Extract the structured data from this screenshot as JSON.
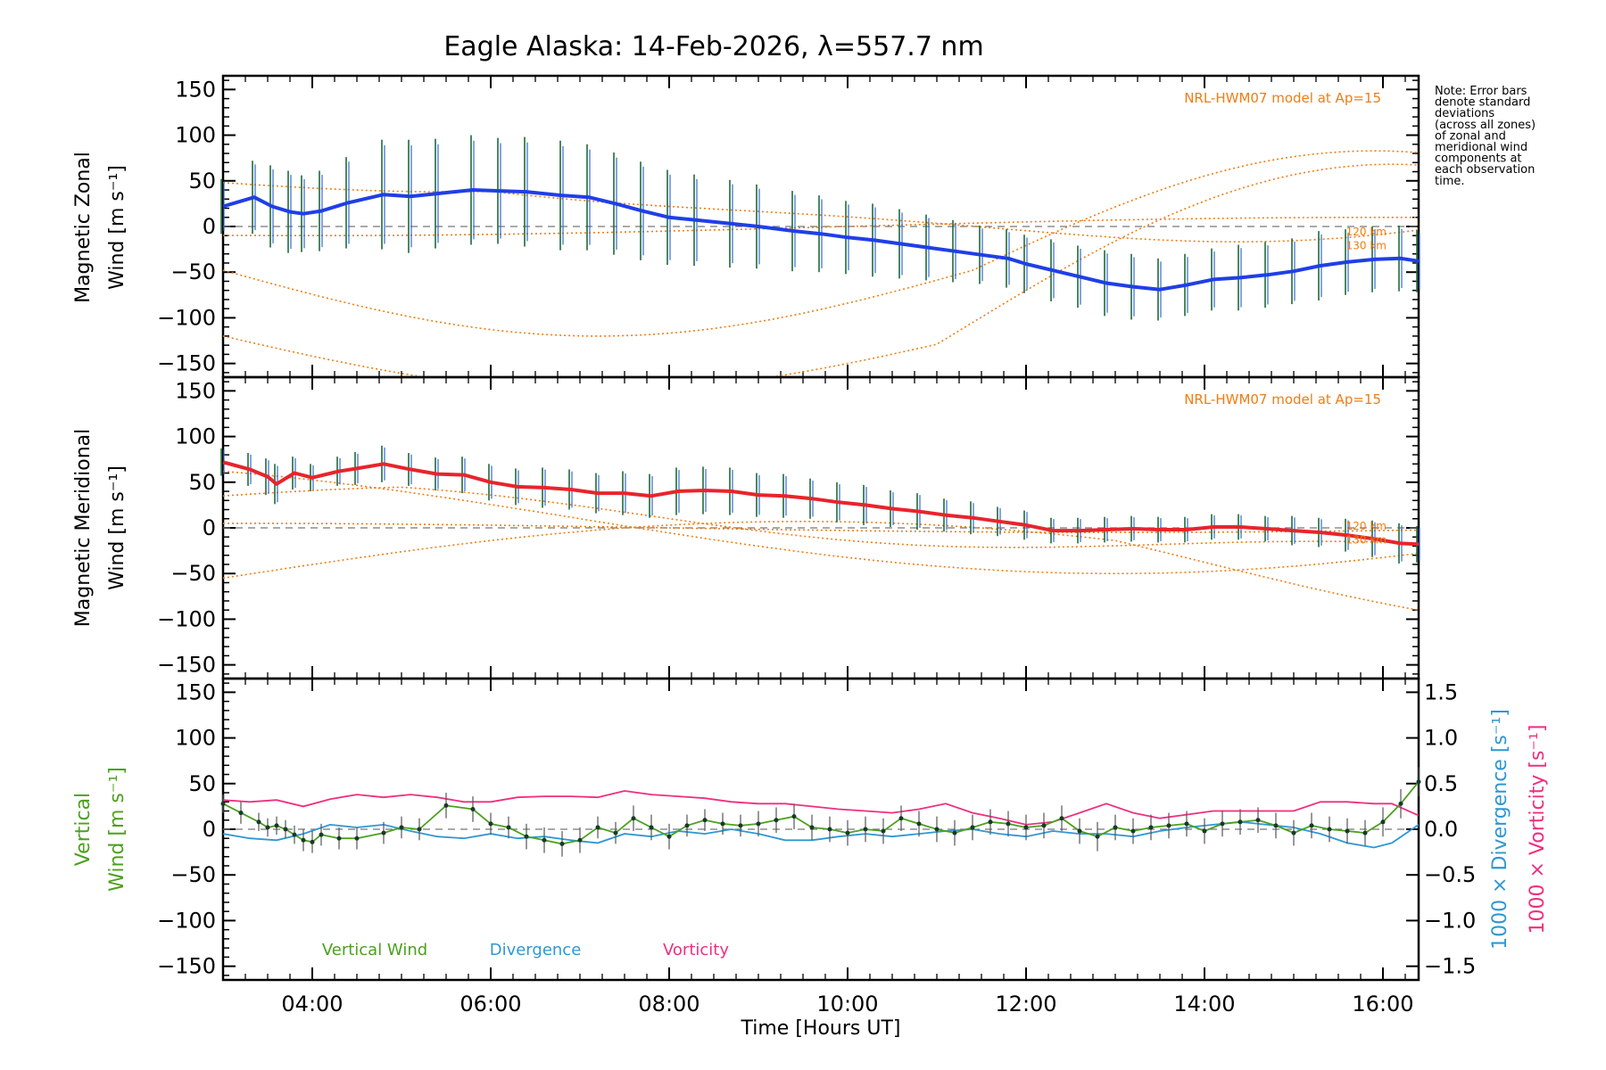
{
  "chart_data": {
    "type": "line",
    "title": "Eagle Alaska: 14-Feb-2026, λ=557.7 nm",
    "note_lines": [
      "Note: Error bars",
      "denote standard",
      "deviations",
      "(across all zones)",
      "of zonal and",
      "meridional wind",
      "components at",
      "each observation",
      "time."
    ],
    "xlabel": "Time [Hours UT]",
    "xlim": [
      3.0,
      16.4
    ],
    "xticks": [
      4,
      6,
      8,
      10,
      12,
      14,
      16
    ],
    "xtick_labels": [
      "04:00",
      "06:00",
      "08:00",
      "10:00",
      "12:00",
      "14:00",
      "16:00"
    ],
    "ylim": [
      -165,
      165
    ],
    "yticks": [
      -150,
      -100,
      -50,
      0,
      50,
      100,
      150
    ],
    "ytick_labels": [
      "−150",
      "−100",
      "−50",
      "0",
      "50",
      "100",
      "150"
    ],
    "zonal": {
      "ylabel_line1": "Magnetic Zonal",
      "ylabel_line2": "Wind [m s⁻¹]",
      "model_label": "NRL-HWM07 model at Ap=15",
      "model_alt_labels": [
        "120 km",
        "130 km"
      ],
      "series_color": "#1f3fe6",
      "x": [
        3.0,
        3.35,
        3.55,
        3.75,
        3.9,
        4.1,
        4.4,
        4.8,
        5.1,
        5.4,
        5.8,
        6.1,
        6.4,
        6.8,
        7.1,
        7.4,
        7.7,
        8.0,
        8.3,
        8.7,
        9.0,
        9.4,
        9.7,
        10.0,
        10.3,
        10.6,
        10.9,
        11.2,
        11.5,
        11.8,
        12.0,
        12.3,
        12.6,
        12.9,
        13.2,
        13.5,
        13.8,
        14.1,
        14.4,
        14.7,
        15.0,
        15.3,
        15.6,
        15.9,
        16.2,
        16.4
      ],
      "values": [
        22,
        32,
        22,
        16,
        14,
        17,
        26,
        35,
        33,
        36,
        40,
        39,
        38,
        34,
        32,
        25,
        17,
        10,
        7,
        3,
        0,
        -5,
        -8,
        -12,
        -15,
        -19,
        -23,
        -27,
        -31,
        -35,
        -41,
        -48,
        -55,
        -62,
        -66,
        -69,
        -64,
        -58,
        -56,
        -53,
        -49,
        -43,
        -39,
        -36,
        -35,
        -38
      ],
      "err": [
        30,
        40,
        45,
        45,
        42,
        44,
        50,
        60,
        62,
        60,
        60,
        58,
        60,
        60,
        58,
        56,
        54,
        52,
        50,
        48,
        46,
        44,
        42,
        40,
        40,
        38,
        36,
        34,
        32,
        32,
        32,
        34,
        34,
        36,
        36,
        34,
        34,
        34,
        36,
        36,
        36,
        38,
        36,
        36,
        36,
        34
      ]
    },
    "meridional": {
      "ylabel_line1": "Magnetic Meridional",
      "ylabel_line2": "Wind [m s⁻¹]",
      "model_label": "NRL-HWM07 model at Ap=15",
      "model_alt_labels": [
        "120 km",
        "130 km"
      ],
      "series_color": "#e8242c",
      "x": [
        3.0,
        3.3,
        3.5,
        3.6,
        3.8,
        4.0,
        4.3,
        4.5,
        4.8,
        5.1,
        5.4,
        5.7,
        6.0,
        6.3,
        6.6,
        6.9,
        7.2,
        7.5,
        7.8,
        8.1,
        8.4,
        8.7,
        9.0,
        9.3,
        9.6,
        9.9,
        10.2,
        10.5,
        10.8,
        11.1,
        11.4,
        11.7,
        12.0,
        12.3,
        12.6,
        12.9,
        13.2,
        13.5,
        13.8,
        14.1,
        14.4,
        14.7,
        15.0,
        15.3,
        15.6,
        15.9,
        16.2,
        16.4
      ],
      "values": [
        72,
        64,
        56,
        48,
        60,
        55,
        62,
        65,
        70,
        64,
        59,
        58,
        50,
        45,
        44,
        42,
        38,
        38,
        35,
        40,
        41,
        40,
        36,
        35,
        32,
        28,
        25,
        21,
        18,
        14,
        11,
        7,
        3,
        -3,
        -3,
        -2,
        -1,
        -2,
        -2,
        1,
        1,
        -1,
        -3,
        -5,
        -8,
        -12,
        -17,
        -18
      ],
      "err": [
        15,
        18,
        20,
        22,
        18,
        15,
        16,
        18,
        20,
        18,
        18,
        20,
        20,
        20,
        22,
        22,
        22,
        24,
        24,
        26,
        26,
        26,
        24,
        24,
        22,
        22,
        22,
        20,
        20,
        18,
        18,
        16,
        16,
        14,
        14,
        14,
        14,
        14,
        14,
        14,
        14,
        14,
        16,
        16,
        18,
        20,
        22,
        20
      ]
    },
    "vertical": {
      "ylabel_line1": "Vertical",
      "ylabel_line2": "Wind [m s⁻¹]",
      "ylabel_right1": "1000 × Divergence [s⁻¹]",
      "ylabel_right2": "1000 × Vorticity [s⁻¹]",
      "yticks_right": [
        -1.5,
        -1.0,
        -0.5,
        0.0,
        0.5,
        1.0,
        1.5
      ],
      "ytick_labels_right": [
        "−1.5",
        "−1.0",
        "−0.5",
        "0.0",
        "0.5",
        "1.0",
        "1.5"
      ],
      "ylim_right": [
        -1.65,
        1.65
      ],
      "legend": [
        {
          "name": "Vertical Wind",
          "color": "#4ca01e"
        },
        {
          "name": "Divergence",
          "color": "#2f97d4"
        },
        {
          "name": "Vorticity",
          "color": "#ee2f7f"
        }
      ],
      "vertical_wind": {
        "x": [
          3.0,
          3.2,
          3.4,
          3.5,
          3.6,
          3.7,
          3.8,
          3.9,
          4.0,
          4.1,
          4.3,
          4.5,
          4.8,
          5.0,
          5.2,
          5.5,
          5.8,
          6.0,
          6.2,
          6.4,
          6.6,
          6.8,
          7.0,
          7.2,
          7.4,
          7.6,
          7.8,
          8.0,
          8.2,
          8.4,
          8.6,
          8.8,
          9.0,
          9.2,
          9.4,
          9.6,
          9.8,
          10.0,
          10.2,
          10.4,
          10.6,
          10.8,
          11.0,
          11.2,
          11.4,
          11.6,
          11.8,
          12.0,
          12.2,
          12.4,
          12.6,
          12.8,
          13.0,
          13.2,
          13.4,
          13.6,
          13.8,
          14.0,
          14.2,
          14.4,
          14.6,
          14.8,
          15.0,
          15.2,
          15.4,
          15.6,
          15.8,
          16.0,
          16.2,
          16.4
        ],
        "values": [
          28,
          18,
          8,
          2,
          4,
          0,
          -6,
          -12,
          -14,
          -6,
          -10,
          -10,
          -4,
          2,
          0,
          26,
          22,
          6,
          2,
          -8,
          -12,
          -16,
          -12,
          2,
          -4,
          12,
          2,
          -8,
          4,
          10,
          6,
          4,
          6,
          10,
          14,
          2,
          0,
          -4,
          0,
          -2,
          12,
          6,
          0,
          -4,
          2,
          8,
          6,
          2,
          4,
          12,
          -2,
          -8,
          2,
          -2,
          2,
          4,
          6,
          -2,
          6,
          8,
          10,
          4,
          -4,
          4,
          0,
          -2,
          -4,
          8,
          28,
          52
        ],
        "err": [
          10,
          12,
          10,
          10,
          10,
          10,
          10,
          12,
          12,
          12,
          12,
          12,
          12,
          12,
          12,
          14,
          14,
          12,
          12,
          14,
          14,
          14,
          14,
          12,
          12,
          14,
          14,
          14,
          12,
          12,
          12,
          12,
          14,
          14,
          14,
          14,
          14,
          14,
          14,
          14,
          14,
          14,
          14,
          14,
          14,
          14,
          14,
          14,
          14,
          14,
          14,
          16,
          14,
          14,
          14,
          14,
          14,
          14,
          14,
          14,
          14,
          14,
          14,
          14,
          14,
          14,
          14,
          16,
          16,
          16
        ]
      },
      "divergence": {
        "x": [
          3.0,
          3.3,
          3.6,
          3.9,
          4.2,
          4.5,
          4.8,
          5.1,
          5.4,
          5.7,
          6.0,
          6.3,
          6.6,
          6.9,
          7.2,
          7.5,
          7.8,
          8.1,
          8.4,
          8.7,
          9.0,
          9.3,
          9.6,
          9.9,
          10.2,
          10.5,
          10.8,
          11.1,
          11.4,
          11.7,
          12.0,
          12.3,
          12.6,
          12.9,
          13.2,
          13.5,
          13.8,
          14.1,
          14.4,
          14.7,
          15.0,
          15.3,
          15.6,
          15.9,
          16.1,
          16.4
        ],
        "values": [
          -0.05,
          -0.1,
          -0.12,
          -0.05,
          0.05,
          0.02,
          0.05,
          -0.02,
          -0.08,
          -0.1,
          -0.05,
          -0.1,
          -0.08,
          -0.12,
          -0.15,
          -0.05,
          -0.08,
          -0.02,
          -0.05,
          0.0,
          -0.05,
          -0.12,
          -0.12,
          -0.08,
          -0.05,
          -0.08,
          -0.05,
          -0.02,
          0.0,
          -0.05,
          -0.08,
          -0.02,
          -0.05,
          -0.05,
          -0.08,
          -0.02,
          0.02,
          0.05,
          0.08,
          0.05,
          0.02,
          -0.05,
          -0.15,
          -0.2,
          -0.15,
          0.05
        ]
      },
      "vorticity": {
        "x": [
          3.0,
          3.3,
          3.6,
          3.9,
          4.2,
          4.5,
          4.8,
          5.1,
          5.4,
          5.7,
          6.0,
          6.3,
          6.6,
          6.9,
          7.2,
          7.5,
          7.8,
          8.1,
          8.4,
          8.7,
          9.0,
          9.3,
          9.6,
          9.9,
          10.2,
          10.5,
          10.8,
          11.1,
          11.4,
          11.7,
          12.0,
          12.3,
          12.6,
          12.9,
          13.2,
          13.5,
          13.8,
          14.1,
          14.4,
          14.7,
          15.0,
          15.3,
          15.6,
          15.9,
          16.1,
          16.4
        ],
        "values": [
          0.32,
          0.3,
          0.32,
          0.25,
          0.33,
          0.38,
          0.35,
          0.38,
          0.35,
          0.3,
          0.3,
          0.35,
          0.36,
          0.36,
          0.35,
          0.42,
          0.38,
          0.36,
          0.34,
          0.3,
          0.28,
          0.28,
          0.25,
          0.22,
          0.2,
          0.18,
          0.22,
          0.28,
          0.18,
          0.12,
          0.05,
          0.08,
          0.18,
          0.28,
          0.18,
          0.12,
          0.16,
          0.2,
          0.2,
          0.2,
          0.2,
          0.3,
          0.3,
          0.28,
          0.28,
          0.15
        ]
      }
    }
  }
}
